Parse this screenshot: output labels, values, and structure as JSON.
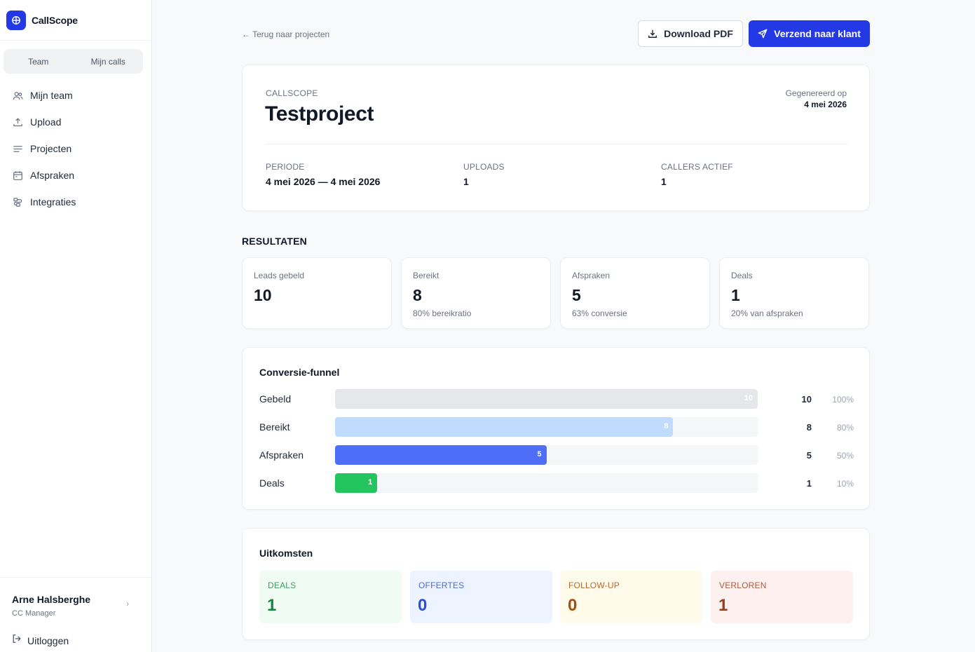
{
  "app": {
    "name": "CallScope"
  },
  "sidebar": {
    "switch": [
      "Team",
      "Mijn calls"
    ],
    "items": [
      {
        "label": "Mijn team",
        "icon": "users-icon"
      },
      {
        "label": "Upload",
        "icon": "upload-icon"
      },
      {
        "label": "Projecten",
        "icon": "list-icon"
      },
      {
        "label": "Afspraken",
        "icon": "calendar-icon"
      },
      {
        "label": "Integraties",
        "icon": "plug-icon"
      }
    ],
    "user": {
      "name": "Arne Halsberghe",
      "role": "CC Manager"
    },
    "logout": "Uitloggen"
  },
  "toolbar": {
    "back": "← Terug naar projecten",
    "download": "Download PDF",
    "send": "Verzend naar klant"
  },
  "report": {
    "eyebrow": "CALLSCOPE",
    "title": "Testproject",
    "generated_label": "Gegenereerd op",
    "generated_date": "4 mei 2026",
    "meta": [
      {
        "label": "PERIODE",
        "value": "4 mei 2026 — 4 mei 2026"
      },
      {
        "label": "UPLOADS",
        "value": "1"
      },
      {
        "label": "CALLERS ACTIEF",
        "value": "1"
      }
    ]
  },
  "results": {
    "title": "RESULTATEN",
    "cards": [
      {
        "label": "Leads gebeld",
        "value": "10",
        "sub": ""
      },
      {
        "label": "Bereikt",
        "value": "8",
        "sub": "80% bereikratio"
      },
      {
        "label": "Afspraken",
        "value": "5",
        "sub": "63% conversie"
      },
      {
        "label": "Deals",
        "value": "1",
        "sub": "20% van afspraken"
      }
    ]
  },
  "funnel": {
    "title": "Conversie-funnel",
    "rows": [
      {
        "label": "Gebeld",
        "value": 10,
        "count": "10",
        "pct": "100%",
        "fraction": 1.0,
        "color": "#e5e7eb",
        "text_color": "#ffffff"
      },
      {
        "label": "Bereikt",
        "value": 8,
        "count": "8",
        "pct": "80%",
        "fraction": 0.8,
        "color": "#bfdbfe",
        "text_color": "#ffffff"
      },
      {
        "label": "Afspraken",
        "value": 5,
        "count": "5",
        "pct": "50%",
        "fraction": 0.5,
        "color": "#4f6ef7",
        "text_color": "#ffffff"
      },
      {
        "label": "Deals",
        "value": 1,
        "count": "1",
        "pct": "10%",
        "fraction": 0.1,
        "color": "#22c55e",
        "text_color": "#ffffff"
      }
    ]
  },
  "outcomes": {
    "title": "Uitkomsten",
    "tiles": [
      {
        "label": "DEALS",
        "value": "1",
        "bg": "#f0fbf4",
        "fg": "#16853d",
        "label_color": "#3f9c61"
      },
      {
        "label": "OFFERTES",
        "value": "0",
        "bg": "#eef4ff",
        "fg": "#2d4ed8",
        "label_color": "#4a6bd6"
      },
      {
        "label": "FOLLOW-UP",
        "value": "0",
        "bg": "#fffbeb",
        "fg": "#a34f10",
        "label_color": "#b8672a"
      },
      {
        "label": "VERLOREN",
        "value": "1",
        "bg": "#fdf1f0",
        "fg": "#9a3b1e",
        "label_color": "#b4573b"
      }
    ]
  },
  "colors": {
    "accent": "#2339e6"
  }
}
